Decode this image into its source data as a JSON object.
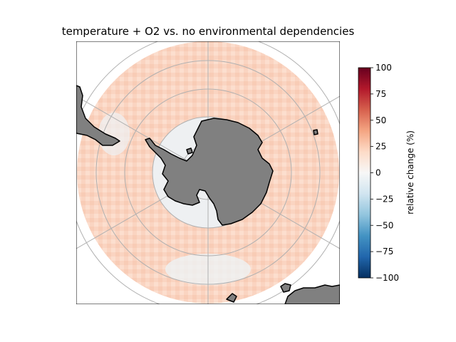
{
  "title": "temperature + O2 vs. no environmental dependencies",
  "map": {
    "projection": "south-polar-stereographic",
    "land_color": "#808080",
    "coastline_color": "#000000",
    "gridline_color": "#b0b0b0",
    "ocean_tint": "#f8c8b0",
    "no_data_color": "#ffffff",
    "graticule": true
  },
  "colorbar": {
    "label": "relative change (%)",
    "cmap": "RdBu_r",
    "vmin": -100,
    "vmax": 100,
    "ticks": [
      "100",
      "75",
      "50",
      "25",
      "0",
      "−25",
      "−50",
      "−75",
      "−100"
    ],
    "colors": [
      "#67001f",
      "#b2182b",
      "#d6604d",
      "#f4a582",
      "#fddbc7",
      "#f7f7f7",
      "#d1e5f0",
      "#92c5de",
      "#4393c3",
      "#2166ac",
      "#053061"
    ]
  }
}
